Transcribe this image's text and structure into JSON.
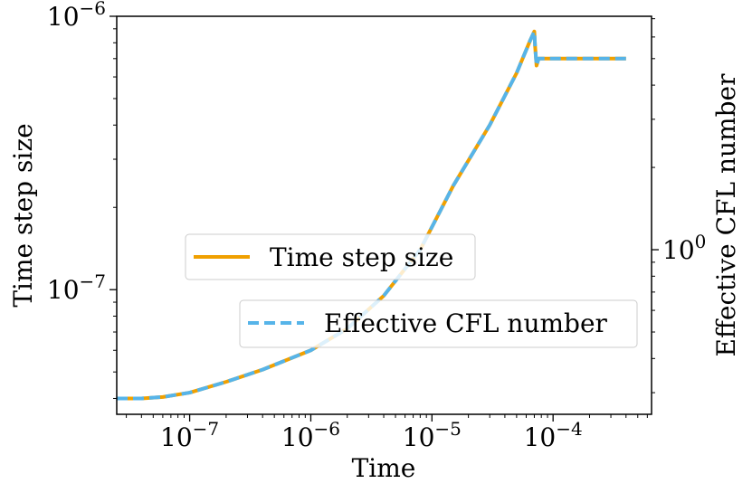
{
  "chart_data": {
    "type": "line",
    "xlabel": "Time",
    "ylabel": "Time step size",
    "y2label": "Effective CFL number",
    "xscale": "log",
    "yscale": "log",
    "y2scale": "log",
    "xlim": [
      2.5e-08,
      0.00065
    ],
    "ylim": [
      3.5e-08,
      1e-06
    ],
    "x_ticks": [
      {
        "base": "10",
        "exp": "−7",
        "value": 1e-07
      },
      {
        "base": "10",
        "exp": "−6",
        "value": 1e-06
      },
      {
        "base": "10",
        "exp": "−5",
        "value": 1e-05
      },
      {
        "base": "10",
        "exp": "−4",
        "value": 0.0001
      }
    ],
    "y_ticks": [
      {
        "base": "10",
        "exp": "−7",
        "value": 1e-07
      },
      {
        "base": "10",
        "exp": "−6",
        "value": 1e-06
      }
    ],
    "y2_ticks": [
      {
        "base": "10",
        "exp": "0",
        "value": 1
      }
    ],
    "grid": false,
    "series": [
      {
        "name": "Time step size",
        "axis": "left",
        "color": "#f0a000",
        "style": "solid",
        "x": [
          2.5e-08,
          4e-08,
          6e-08,
          1e-07,
          2e-07,
          4e-07,
          1e-06,
          2e-06,
          4e-06,
          8e-06,
          1.5e-05,
          3e-05,
          5e-05,
          6.5e-05,
          7e-05,
          7.1e-05,
          7.3e-05,
          7.6e-05,
          8.5e-05,
          0.00012,
          0.0002,
          0.0004
        ],
        "y": [
          4e-08,
          4e-08,
          4.05e-08,
          4.2e-08,
          4.6e-08,
          5.1e-08,
          6e-08,
          7.2e-08,
          9.5e-08,
          1.4e-07,
          2.4e-07,
          4e-07,
          6.2e-07,
          8.2e-07,
          8.8e-07,
          7.8e-07,
          6.6e-07,
          7e-07,
          7e-07,
          7e-07,
          7e-07,
          7e-07
        ]
      },
      {
        "name": "Effective CFL number",
        "axis": "right",
        "color": "#56b4e9",
        "style": "dashed",
        "x": [
          2.5e-08,
          4e-08,
          6e-08,
          1e-07,
          2e-07,
          4e-07,
          1e-06,
          2e-06,
          4e-06,
          8e-06,
          1.5e-05,
          3e-05,
          5e-05,
          6.5e-05,
          7e-05,
          7.1e-05,
          7.3e-05,
          7.6e-05,
          8.5e-05,
          0.00012,
          0.0002,
          0.0004
        ],
        "y": [
          4e-08,
          4e-08,
          4.05e-08,
          4.2e-08,
          4.6e-08,
          5.1e-08,
          6e-08,
          7.2e-08,
          9.5e-08,
          1.4e-07,
          2.4e-07,
          4e-07,
          6.2e-07,
          8.2e-07,
          8.8e-07,
          7.8e-07,
          6.6e-07,
          7e-07,
          7e-07,
          7e-07,
          7e-07,
          7e-07
        ]
      }
    ],
    "legend": [
      {
        "label": "Time step size",
        "position": "center"
      },
      {
        "label": "Effective CFL number",
        "position": "lower-right"
      }
    ]
  }
}
